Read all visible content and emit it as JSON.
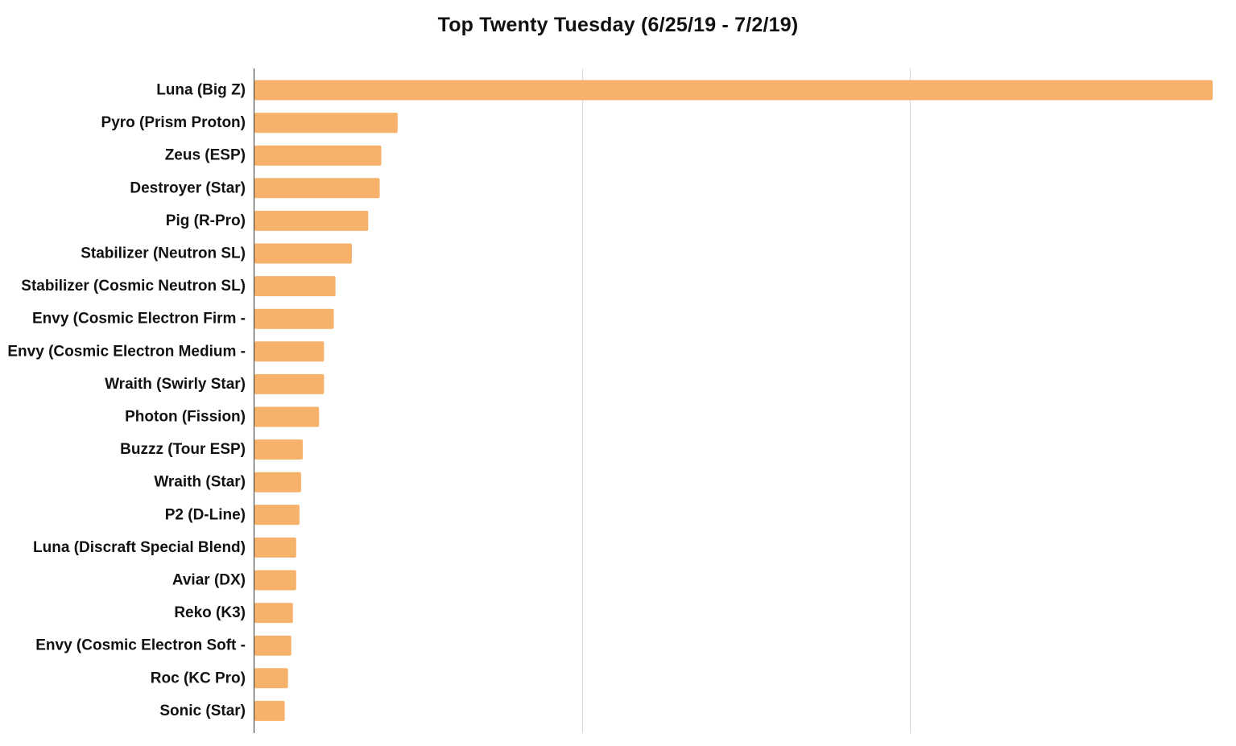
{
  "chart_data": {
    "type": "bar",
    "orientation": "horizontal",
    "title": "Top Twenty Tuesday (6/25/19 - 7/2/19)",
    "xlabel": "",
    "ylabel": "",
    "xlim": [
      0,
      29.3
    ],
    "grid": true,
    "legend": "none",
    "bar_color": "#f6b26b",
    "categories": [
      "Luna (Big Z)",
      "Pyro (Prism Proton)",
      "Zeus (ESP)",
      "Destroyer (Star)",
      "Pig (R-Pro)",
      "Stabilizer (Neutron SL)",
      "Stabilizer (Cosmic Neutron SL)",
      "Envy (Cosmic Electron Firm -",
      "Envy (Cosmic Electron Medium -",
      "Wraith (Swirly Star)",
      "Photon (Fission)",
      "Buzzz (Tour ESP)",
      "Wraith (Star)",
      "P2 (D-Line)",
      "Luna (Discraft Special Blend)",
      "Aviar (DX)",
      "Reko (K3)",
      "Envy (Cosmic Electron Soft -",
      "Roc (KC Pro)",
      "Sonic (Star)"
    ],
    "values": [
      29.3,
      4.4,
      3.9,
      3.85,
      3.5,
      3.0,
      2.5,
      2.45,
      2.15,
      2.15,
      2.0,
      1.5,
      1.45,
      1.4,
      1.3,
      1.3,
      1.2,
      1.15,
      1.05,
      0.95
    ]
  }
}
